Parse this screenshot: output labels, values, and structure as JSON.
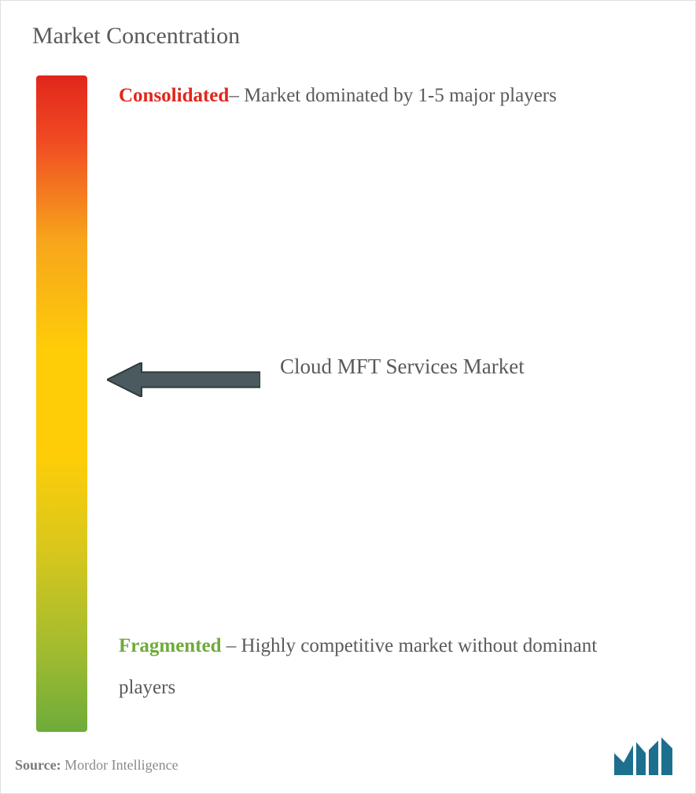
{
  "title": "Market Concentration",
  "gradient": {
    "colors": [
      "#e1261c",
      "#f04b23",
      "#f7a51c",
      "#fecd08",
      "#fecd08",
      "#d9c71c",
      "#a0bb30",
      "#6eab3a"
    ],
    "stops": [
      0,
      10,
      25,
      42,
      58,
      72,
      88,
      100
    ]
  },
  "top_label": {
    "highlight": "Consolidated",
    "highlight_color": "#e1261c",
    "rest": "– Market dominated by 1-5 major players"
  },
  "bottom_label": {
    "highlight": "Fragmented",
    "highlight_color": "#6eab3a",
    "rest": " – Highly competitive market without dominant players"
  },
  "marker": {
    "label": "Cloud MFT Services Market",
    "arrow_color": "#4a5a5e",
    "arrow_width": 195,
    "arrow_height": 44
  },
  "source": {
    "prefix": "Source:",
    "name": "Mordor Intelligence"
  },
  "logo": {
    "color": "#1d6f8e",
    "name": "mordor-logo"
  },
  "text_color": "#5a5a5a"
}
